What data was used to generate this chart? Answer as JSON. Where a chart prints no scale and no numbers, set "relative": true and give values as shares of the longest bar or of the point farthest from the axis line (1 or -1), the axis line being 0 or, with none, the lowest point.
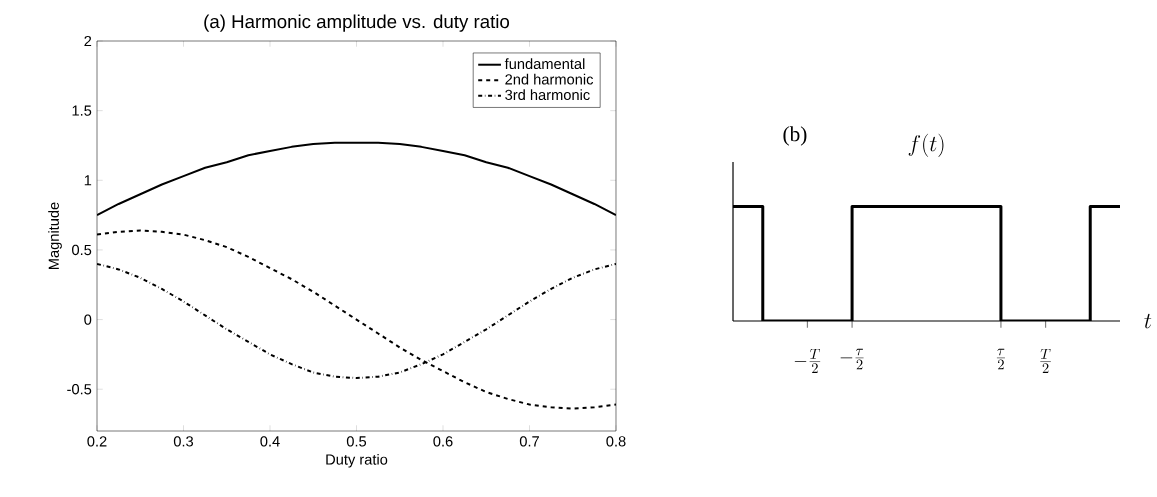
{
  "chart_data": [
    {
      "type": "line",
      "title": "(a) Harmonic amplitude vs. duty ratio",
      "xlabel": "Duty ratio",
      "ylabel": "Magnitude",
      "x": [
        0.2,
        0.225,
        0.25,
        0.275,
        0.3,
        0.325,
        0.35,
        0.375,
        0.4,
        0.425,
        0.45,
        0.475,
        0.5,
        0.525,
        0.55,
        0.575,
        0.6,
        0.625,
        0.65,
        0.675,
        0.7,
        0.725,
        0.75,
        0.775,
        0.8
      ],
      "series": [
        {
          "name": "fundamental",
          "color": "#000000",
          "line_style": "solid",
          "values": [
            0.75,
            0.83,
            0.9,
            0.97,
            1.03,
            1.09,
            1.13,
            1.18,
            1.21,
            1.24,
            1.26,
            1.27,
            1.27,
            1.27,
            1.26,
            1.24,
            1.21,
            1.18,
            1.13,
            1.09,
            1.03,
            0.97,
            0.9,
            0.83,
            0.75
          ]
        },
        {
          "name": "2nd harmonic",
          "color": "#000000",
          "line_style": "dashed",
          "values": [
            0.61,
            0.63,
            0.64,
            0.63,
            0.61,
            0.57,
            0.52,
            0.45,
            0.37,
            0.29,
            0.2,
            0.1,
            0,
            -0.1,
            -0.2,
            -0.29,
            -0.37,
            -0.45,
            -0.52,
            -0.57,
            -0.61,
            -0.63,
            -0.64,
            -0.63,
            -0.61
          ]
        },
        {
          "name": "3rd harmonic",
          "color": "#000000",
          "line_style": "dashdot",
          "values": [
            0.4,
            0.36,
            0.3,
            0.22,
            0.13,
            0.03,
            -0.07,
            -0.16,
            -0.25,
            -0.32,
            -0.38,
            -0.41,
            -0.42,
            -0.41,
            -0.38,
            -0.32,
            -0.25,
            -0.16,
            -0.07,
            0.03,
            0.13,
            0.22,
            0.3,
            0.36,
            0.4
          ]
        }
      ],
      "xlim": [
        0.2,
        0.8
      ],
      "ylim": [
        -0.8,
        2
      ],
      "xticks": [
        0.2,
        0.3,
        0.4,
        0.5,
        0.6,
        0.7,
        0.8
      ],
      "yticks": [
        -0.5,
        0,
        0.5,
        1,
        1.5,
        2
      ],
      "legend": "top right"
    },
    {
      "type": "step",
      "relative": true,
      "title": "(b)",
      "xlabel": "t",
      "ylabel": "f(t)",
      "categories": [
        null,
        null,
        null,
        null,
        null,
        "-\\frac{T}{2}",
        null,
        null,
        "-\\frac{\\tau}{2}",
        null,
        null,
        null,
        null,
        null,
        null,
        null,
        null,
        null,
        "\\frac{\\tau}{2}",
        null,
        null,
        "\\frac{T}{2}",
        null,
        null,
        null,
        null,
        null
      ],
      "values": [
        1,
        1,
        0,
        0,
        0,
        0,
        0,
        0,
        1,
        1,
        1,
        1,
        1,
        1,
        1,
        1,
        1,
        1,
        0,
        0,
        0,
        0,
        0,
        0,
        1,
        1,
        1
      ],
      "color": "#000000"
    }
  ]
}
